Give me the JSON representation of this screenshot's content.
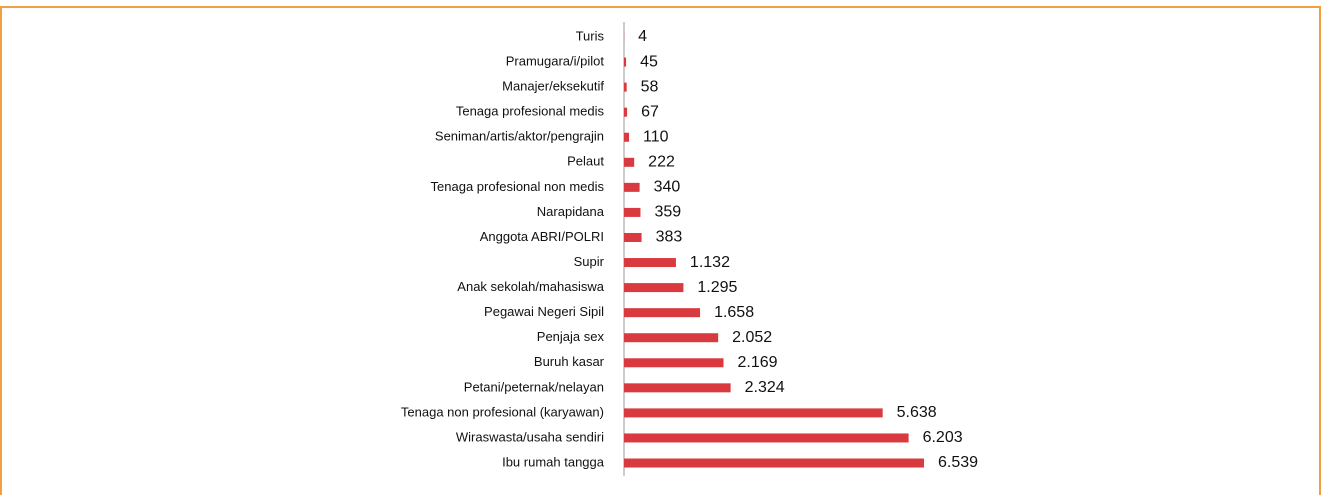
{
  "chart_data": {
    "type": "bar",
    "orientation": "horizontal",
    "color": "#d93a3f",
    "categories": [
      "Turis",
      "Pramugara/i/pilot",
      "Manajer/eksekutif",
      "Tenaga profesional medis",
      "Seniman/artis/aktor/pengrajin",
      "Pelaut",
      "Tenaga profesional non medis",
      "Narapidana",
      "Anggota ABRI/POLRI",
      "Supir",
      "Anak sekolah/mahasiswa",
      "Pegawai Negeri Sipil",
      "Penjaja sex",
      "Buruh kasar",
      "Petani/peternak/nelayan",
      "Tenaga non profesional (karyawan)",
      "Wiraswasta/usaha sendiri",
      "Ibu rumah tangga"
    ],
    "values": [
      4,
      45,
      58,
      67,
      110,
      222,
      340,
      359,
      383,
      1132,
      1295,
      1658,
      2052,
      2169,
      2324,
      5638,
      6203,
      6539
    ],
    "value_labels": [
      "4",
      "45",
      "58",
      "67",
      "110",
      "222",
      "340",
      "359",
      "383",
      "1.132",
      "1.295",
      "1.658",
      "2.052",
      "2.169",
      "2.324",
      "5.638",
      "6.203",
      "6.539"
    ]
  }
}
